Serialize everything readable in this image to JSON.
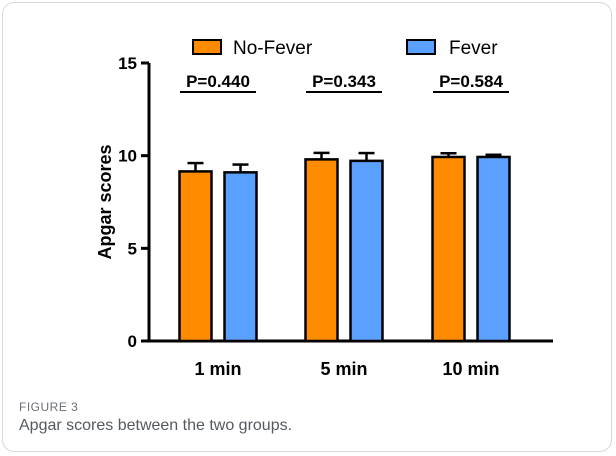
{
  "figure": {
    "label": "FIGURE 3",
    "caption": "Apgar scores between the two groups."
  },
  "colors": {
    "no_fever": "#ff8c00",
    "fever": "#5aa0ff",
    "axis": "#000000"
  },
  "chart_data": {
    "type": "bar",
    "title": "",
    "xlabel": "",
    "ylabel": "Apgar scores",
    "categories": [
      "1 min",
      "5 min",
      "10 min"
    ],
    "ylim": [
      0,
      15
    ],
    "yticks": [
      "0",
      "5",
      "10",
      "15"
    ],
    "legend_position": "top",
    "grid": false,
    "series": [
      {
        "name": "No-Fever",
        "values": [
          9.15,
          9.8,
          9.93
        ],
        "errors": [
          0.45,
          0.35,
          0.2
        ]
      },
      {
        "name": "Fever",
        "values": [
          9.1,
          9.72,
          9.93
        ],
        "errors": [
          0.42,
          0.42,
          0.12
        ]
      }
    ],
    "annotations": [
      "P=0.440",
      "P=0.343",
      "P=0.584"
    ]
  }
}
